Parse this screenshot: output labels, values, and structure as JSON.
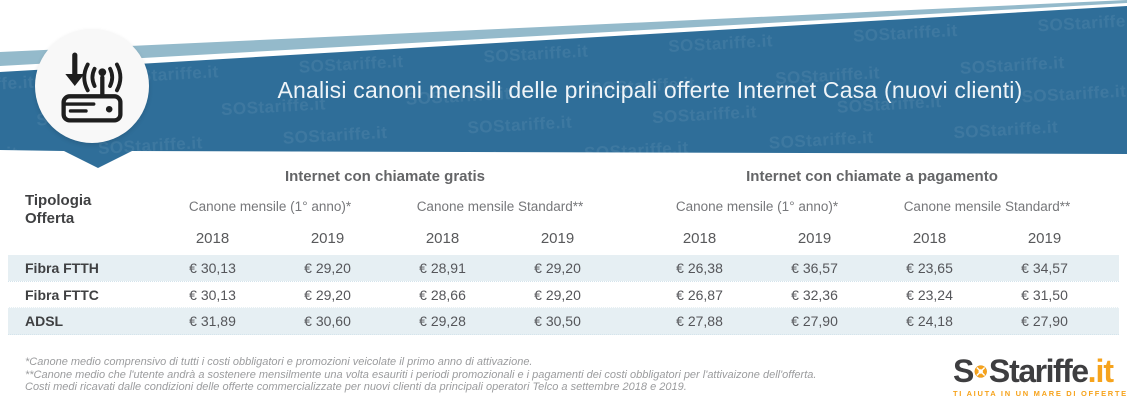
{
  "banner": {
    "title": "Analisi canoni mensili delle principali offerte Internet Casa (nuovi clienti)",
    "watermark": "SOStariffe.it",
    "banner_color": "#2f6e99",
    "stripe_color": "#94bacb"
  },
  "table": {
    "row_header": {
      "line1": "Tipologia",
      "line2": "Offerta"
    },
    "groups": [
      {
        "label": "Internet con chiamate gratis",
        "sub": [
          "Canone mensile (1° anno)*",
          "Canone mensile Standard**"
        ]
      },
      {
        "label": "Internet con chiamate a pagamento",
        "sub": [
          "Canone mensile (1° anno)*",
          "Canone mensile Standard**"
        ]
      }
    ],
    "years": [
      "2018",
      "2019",
      "2018",
      "2019",
      "2018",
      "2019",
      "2018",
      "2019"
    ],
    "rows": [
      {
        "label": "Fibra FTTH",
        "values": [
          "€ 30,13",
          "€ 29,20",
          "€ 28,91",
          "€ 29,20",
          "€ 26,38",
          "€ 36,57",
          "€ 23,65",
          "€ 34,57"
        ]
      },
      {
        "label": "Fibra FTTC",
        "values": [
          "€ 30,13",
          "€ 29,20",
          "€ 28,66",
          "€ 29,20",
          "€ 26,87",
          "€ 32,36",
          "€ 23,24",
          "€ 31,50"
        ]
      },
      {
        "label": "ADSL",
        "values": [
          "€ 31,89",
          "€ 30,60",
          "€ 29,28",
          "€ 30,50",
          "€ 27,88",
          "€ 27,90",
          "€ 24,18",
          "€ 27,90"
        ]
      }
    ],
    "alt_row_color": "#e6eff3"
  },
  "chart_data": {
    "type": "table",
    "title": "Analisi canoni mensili delle principali offerte Internet Casa (nuovi clienti)",
    "categories": [
      "Fibra FTTH",
      "Fibra FTTC",
      "ADSL"
    ],
    "unit": "EUR",
    "series": [
      {
        "name": "Internet con chiamate gratis - Canone mensile (1° anno)* - 2018",
        "values": [
          30.13,
          30.13,
          31.89
        ]
      },
      {
        "name": "Internet con chiamate gratis - Canone mensile (1° anno)* - 2019",
        "values": [
          29.2,
          29.2,
          30.6
        ]
      },
      {
        "name": "Internet con chiamate gratis - Canone mensile Standard** - 2018",
        "values": [
          28.91,
          28.66,
          29.28
        ]
      },
      {
        "name": "Internet con chiamate gratis - Canone mensile Standard** - 2019",
        "values": [
          29.2,
          29.2,
          30.5
        ]
      },
      {
        "name": "Internet con chiamate a pagamento - Canone mensile (1° anno)* - 2018",
        "values": [
          26.38,
          26.87,
          27.88
        ]
      },
      {
        "name": "Internet con chiamate a pagamento - Canone mensile (1° anno)* - 2019",
        "values": [
          36.57,
          32.36,
          27.9
        ]
      },
      {
        "name": "Internet con chiamate a pagamento - Canone mensile Standard** - 2018",
        "values": [
          23.65,
          23.24,
          24.18
        ]
      },
      {
        "name": "Internet con chiamate a pagamento - Canone mensile Standard** - 2019",
        "values": [
          34.57,
          31.5,
          27.9
        ]
      }
    ]
  },
  "footnotes": {
    "lines": [
      "*Canone medio comprensivo di tutti i costi obbligatori e promozioni veicolate il primo anno di attivazione.",
      "**Canone medio che l'utente andrà a sostenere mensilmente una volta esauriti i periodi promozionali e i pagamenti dei costi obbligatori per l'attivaizone dell'offerta.",
      "Costi medi ricavati dalle condizioni delle offerte commercializzate per nuovi clienti da principali operatori Telco a settembre 2018 e 2019."
    ]
  },
  "logo": {
    "s1": "S",
    "s2": "S",
    "tariffe": "tariffe",
    "it": ".it",
    "tagline": "TI AIUTA IN UN MARE DI OFFERTE",
    "orange": "#f6a31c",
    "dark": "#3e3e40"
  }
}
